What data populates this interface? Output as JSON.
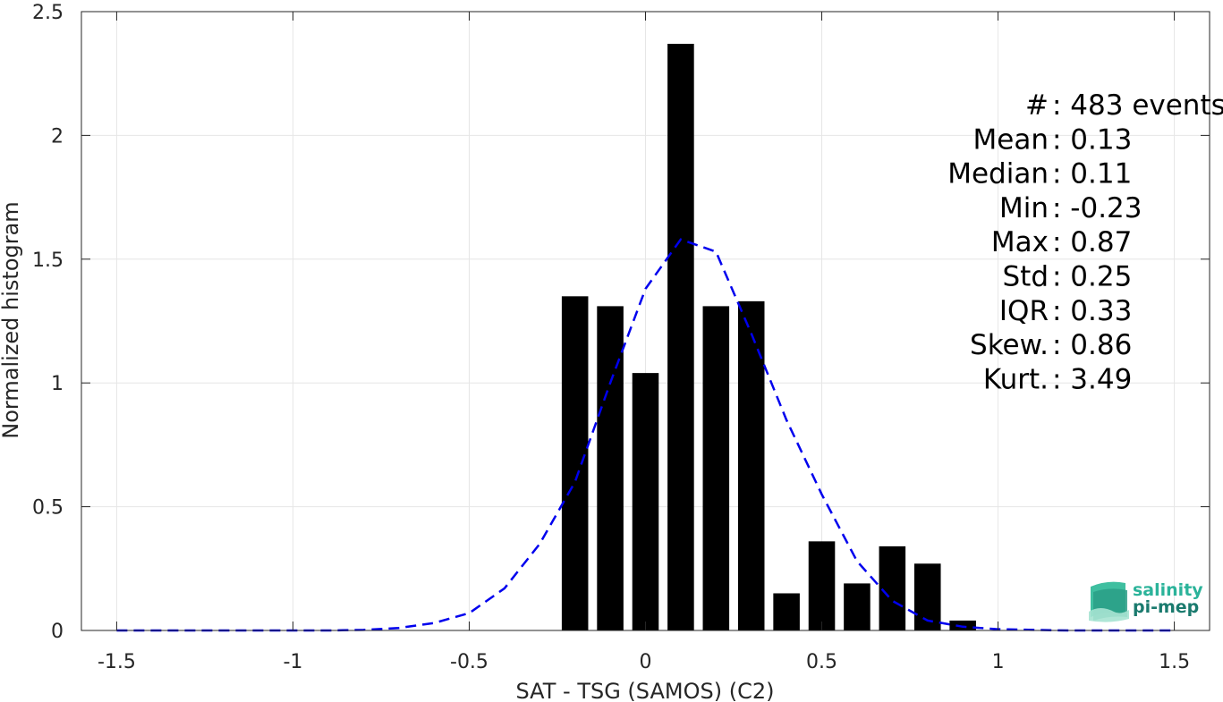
{
  "chart_data": {
    "type": "bar",
    "xlabel": "SAT - TSG (SAMOS) (C2)",
    "ylabel": "Normalized histogram",
    "xlim": [
      -1.6,
      1.6
    ],
    "ylim": [
      0,
      2.5
    ],
    "xticks": [
      -1.5,
      -1,
      -0.5,
      0,
      0.5,
      1,
      1.5
    ],
    "xtick_labels": [
      "-1.5",
      "-1",
      "-0.5",
      "0",
      "0.5",
      "1",
      "1.5"
    ],
    "yticks": [
      0,
      0.5,
      1,
      1.5,
      2,
      2.5
    ],
    "ytick_labels": [
      "0",
      "0.5",
      "1",
      "1.5",
      "2",
      "2.5"
    ],
    "grid": true,
    "bar_width": 0.075,
    "bars": {
      "x": [
        -0.2,
        -0.1,
        0.0,
        0.1,
        0.2,
        0.3,
        0.4,
        0.5,
        0.6,
        0.7,
        0.8,
        0.9
      ],
      "values": [
        1.35,
        1.31,
        1.04,
        2.37,
        1.31,
        1.33,
        0.15,
        0.36,
        0.19,
        0.34,
        0.27,
        0.04
      ],
      "color": "#000000"
    },
    "fit": {
      "style": "dashed",
      "color": "#0000ee",
      "x": [
        -1.5,
        -1.4,
        -1.3,
        -1.2,
        -1.1,
        -1.0,
        -0.9,
        -0.8,
        -0.7,
        -0.6,
        -0.5,
        -0.4,
        -0.3,
        -0.2,
        -0.1,
        0.0,
        0.1,
        0.2,
        0.3,
        0.4,
        0.5,
        0.6,
        0.7,
        0.8,
        0.9,
        1.0,
        1.1,
        1.2,
        1.3,
        1.4,
        1.5
      ],
      "y": [
        0,
        0,
        0,
        0,
        0,
        0,
        0,
        0.002,
        0.01,
        0.03,
        0.07,
        0.17,
        0.35,
        0.6,
        1.0,
        1.38,
        1.58,
        1.53,
        1.2,
        0.85,
        0.55,
        0.28,
        0.12,
        0.04,
        0.015,
        0.005,
        0.002,
        0,
        0,
        0,
        0
      ]
    }
  },
  "stats": [
    {
      "label": "#  ",
      "value": ": 483 events"
    },
    {
      "label": "Mean ",
      "value": ": 0.13"
    },
    {
      "label": "Median ",
      "value": ": 0.11"
    },
    {
      "label": "Min ",
      "value": ": -0.23"
    },
    {
      "label": "Max ",
      "value": ": 0.87"
    },
    {
      "label": "Std ",
      "value": ": 0.25"
    },
    {
      "label": "IQR ",
      "value": ": 0.33"
    },
    {
      "label": "Skew. ",
      "value": ": 0.86"
    },
    {
      "label": "Kurt. ",
      "value": ": 3.49"
    }
  ],
  "logo": {
    "line1": "salinity",
    "line2": "pi-mep",
    "color1": "#2bb39a",
    "color2": "#1a7a6e"
  }
}
